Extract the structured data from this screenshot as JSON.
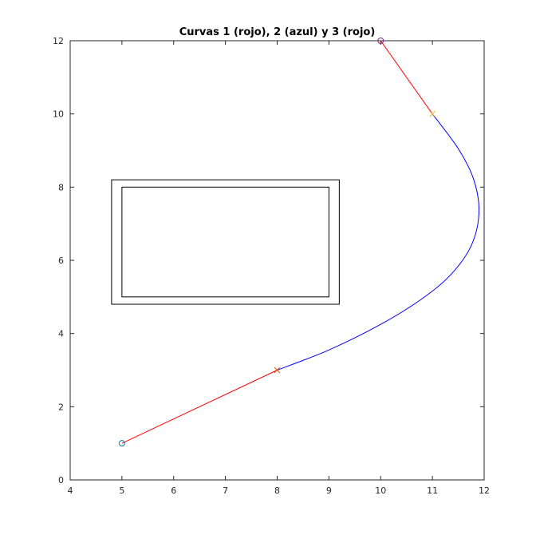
{
  "chart_data": {
    "type": "line",
    "title": "Curvas 1 (rojo), 2 (azul) y 3 (rojo)",
    "xlabel": "",
    "ylabel": "",
    "xlim": [
      4,
      12
    ],
    "ylim": [
      0,
      12
    ],
    "xticks": [
      4,
      5,
      6,
      7,
      8,
      9,
      10,
      11,
      12
    ],
    "yticks": [
      0,
      2,
      4,
      6,
      8,
      10,
      12
    ],
    "grid": false,
    "box": true,
    "series": [
      {
        "color": "#ff0000",
        "style": "line",
        "points": [
          [
            5,
            1
          ],
          [
            8,
            3
          ]
        ]
      },
      {
        "color": "#0000ff",
        "style": "curve",
        "points": [
          [
            8,
            3
          ],
          [
            9,
            3.55
          ],
          [
            10,
            4.25
          ],
          [
            10.8,
            4.95
          ],
          [
            11.35,
            5.6
          ],
          [
            11.75,
            6.4
          ],
          [
            11.9,
            7.3
          ],
          [
            11.8,
            8.2
          ],
          [
            11.5,
            9.05
          ],
          [
            11,
            10
          ]
        ]
      },
      {
        "color": "#ff0000",
        "style": "line",
        "points": [
          [
            11,
            10
          ],
          [
            10,
            12
          ]
        ]
      }
    ],
    "markers": [
      {
        "x": 5,
        "y": 1,
        "symbol": "o",
        "color": "#0072bd"
      },
      {
        "x": 8,
        "y": 3,
        "symbol": "x",
        "color": "#d95319"
      },
      {
        "x": 11,
        "y": 10,
        "symbol": "x",
        "color": "#edb120"
      },
      {
        "x": 10,
        "y": 12,
        "symbol": "o",
        "color": "#7e2f8e"
      }
    ],
    "obstacle": {
      "outer": {
        "x0": 4.8,
        "x1": 9.2,
        "y0": 4.8,
        "y1": 8.2,
        "color": "#000000"
      },
      "inner": {
        "x0": 5,
        "x1": 9,
        "y0": 5,
        "y1": 8,
        "color": "#000000"
      }
    }
  }
}
